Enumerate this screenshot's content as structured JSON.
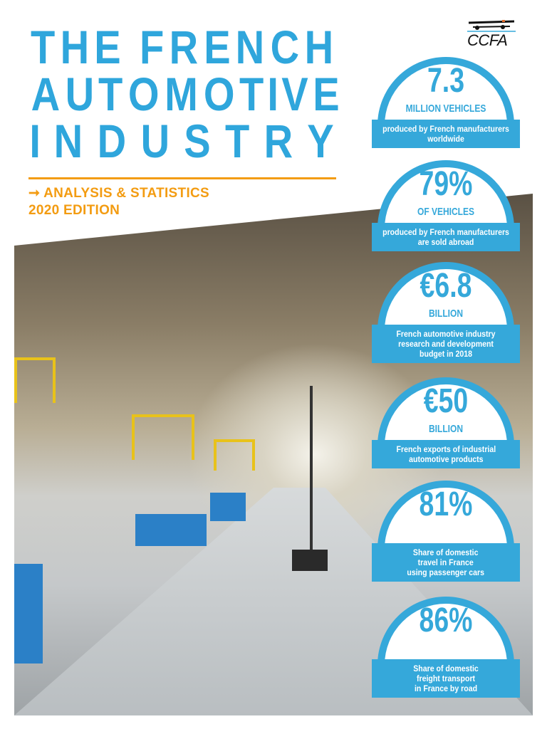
{
  "title": {
    "lines": [
      "THE FRENCH",
      "AUTOMOTIVE",
      "INDUSTRY"
    ]
  },
  "subtitle": {
    "line1": "➞ ANALYSIS & STATISTICS",
    "line2": "2020 EDITION"
  },
  "logo": {
    "text": "CCFA"
  },
  "colors": {
    "blue": "#35a8da",
    "orange": "#f39c12"
  },
  "stats": [
    {
      "value": "7.3",
      "unit": "MILLION VEHICLES",
      "desc": "produced by French manufacturers\nworldwide"
    },
    {
      "value": "79%",
      "unit": "OF VEHICLES",
      "desc": "produced by French manufacturers\nare sold abroad"
    },
    {
      "value": "€6.8",
      "unit": "BILLION",
      "desc": "French automotive industry\nresearch and development\nbudget in 2018"
    },
    {
      "value": "€50",
      "unit": "BILLION",
      "desc": "French exports of industrial\nautomotive products"
    },
    {
      "value": "81%",
      "unit": "",
      "desc": "Share of domestic\ntravel in France\nusing passenger cars"
    },
    {
      "value": "86%",
      "unit": "",
      "desc": "Share of domestic\nfreight transport\nin France by road"
    }
  ]
}
